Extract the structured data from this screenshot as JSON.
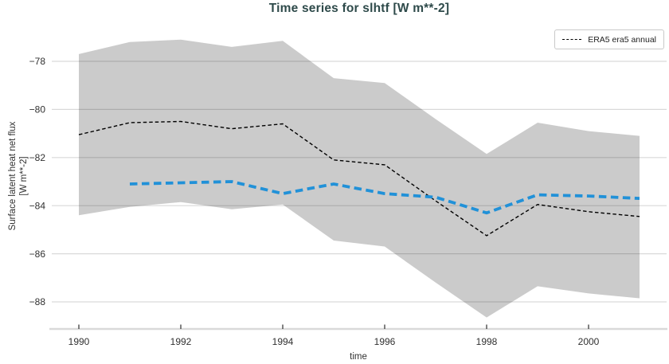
{
  "title": "Time series for slhtf [W m**-2]",
  "legend": {
    "items": [
      {
        "label": "ERA5 era5 annual",
        "marker": "black-dashed-line"
      }
    ],
    "position": "top-right"
  },
  "axes": {
    "xlabel": "time",
    "ylabel_line1": "Surface latent heat net flux",
    "ylabel_line2": "[W m**-2]",
    "x_ticks": [
      "1990",
      "1992",
      "1994",
      "1996",
      "1998",
      "2000"
    ],
    "y_ticks": [
      "−78",
      "−80",
      "−82",
      "−84",
      "−86",
      "−88"
    ]
  },
  "colors": {
    "title": "#2e4a4a",
    "era5_line": "#000000",
    "blue_line": "#2191d8",
    "band": "#cbcbcb",
    "band_alpha_equiv": "rgba(0,0,0,0.205)",
    "gridline": "#d9d9d9",
    "axis_line": "#d9d9d9",
    "tick_mark": "#4a4a4a"
  },
  "chart_data": {
    "type": "line",
    "title": "Time series for slhtf [W m**-2]",
    "xlabel": "time",
    "ylabel": "Surface latent heat net flux [W m**-2]",
    "grid": "horizontal",
    "x": [
      1990,
      1991,
      1992,
      1993,
      1994,
      1995,
      1996,
      1997,
      1998,
      1999,
      2000,
      2001
    ],
    "x_tick_values": [
      1990,
      1992,
      1994,
      1996,
      1998,
      2000
    ],
    "y_tick_values": [
      -78,
      -80,
      -82,
      -84,
      -86,
      -88
    ],
    "xlim": [
      1989.45,
      2001.55
    ],
    "ylim": [
      -89.1,
      -76.45
    ],
    "series": [
      {
        "name": "ERA5 era5 annual",
        "style": "thin-black-dashed",
        "values": [
          -81.05,
          -80.55,
          -80.5,
          -80.8,
          -80.6,
          -82.1,
          -82.3,
          -83.8,
          -85.25,
          -83.95,
          -84.25,
          -84.45
        ]
      },
      {
        "name": "",
        "style": "thick-blue-dashed-unlabeled",
        "values": [
          null,
          -83.1,
          -83.05,
          -83.0,
          -83.5,
          -83.1,
          -83.5,
          -83.65,
          -84.3,
          -83.55,
          -83.6,
          -83.7
        ]
      },
      {
        "name": "uncertainty band",
        "style": "gray-filled-band",
        "upper": [
          -77.7,
          -77.2,
          -77.1,
          -77.4,
          -77.15,
          -78.7,
          -78.9,
          -80.4,
          -81.85,
          -80.55,
          -80.9,
          -81.1
        ],
        "lower": [
          -84.4,
          -84.05,
          -83.85,
          -84.15,
          -83.95,
          -85.45,
          -85.7,
          -87.2,
          -88.65,
          -87.35,
          -87.65,
          -87.85
        ]
      }
    ]
  }
}
